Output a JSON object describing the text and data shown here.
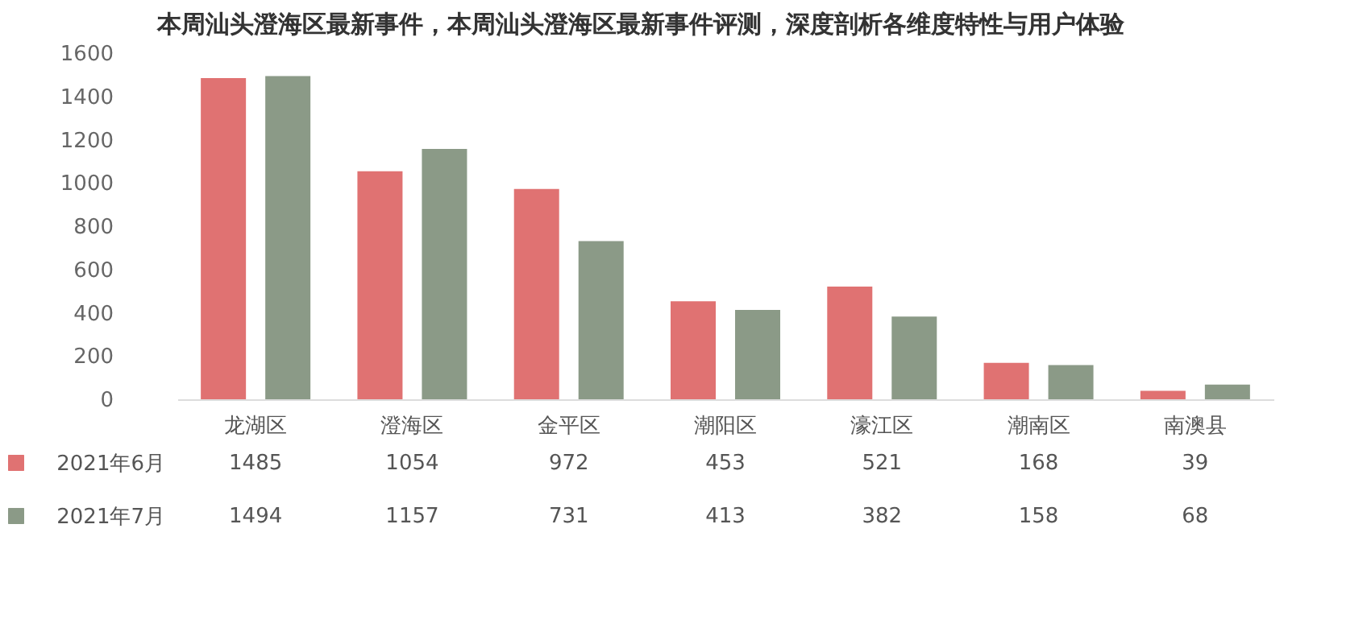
{
  "chart_data": {
    "type": "bar",
    "title": "本周汕头澄海区最新事件，本周汕头澄海区最新事件评测，深度剖析各维度特性与用户体验",
    "categories": [
      "龙湖区",
      "澄海区",
      "金平区",
      "潮阳区",
      "濠江区",
      "潮南区",
      "南澳县"
    ],
    "series": [
      {
        "name": "2021年6月",
        "color": "#e07272",
        "values": [
          1485,
          1054,
          972,
          453,
          521,
          168,
          39
        ]
      },
      {
        "name": "2021年7月",
        "color": "#8b9a87",
        "values": [
          1494,
          1157,
          731,
          413,
          382,
          158,
          68
        ]
      }
    ],
    "ylim": [
      0,
      1600
    ],
    "yticks": [
      0,
      200,
      400,
      600,
      800,
      1000,
      1200,
      1400,
      1600
    ],
    "data_labels": true,
    "legend": "bottom left",
    "grid": false
  }
}
